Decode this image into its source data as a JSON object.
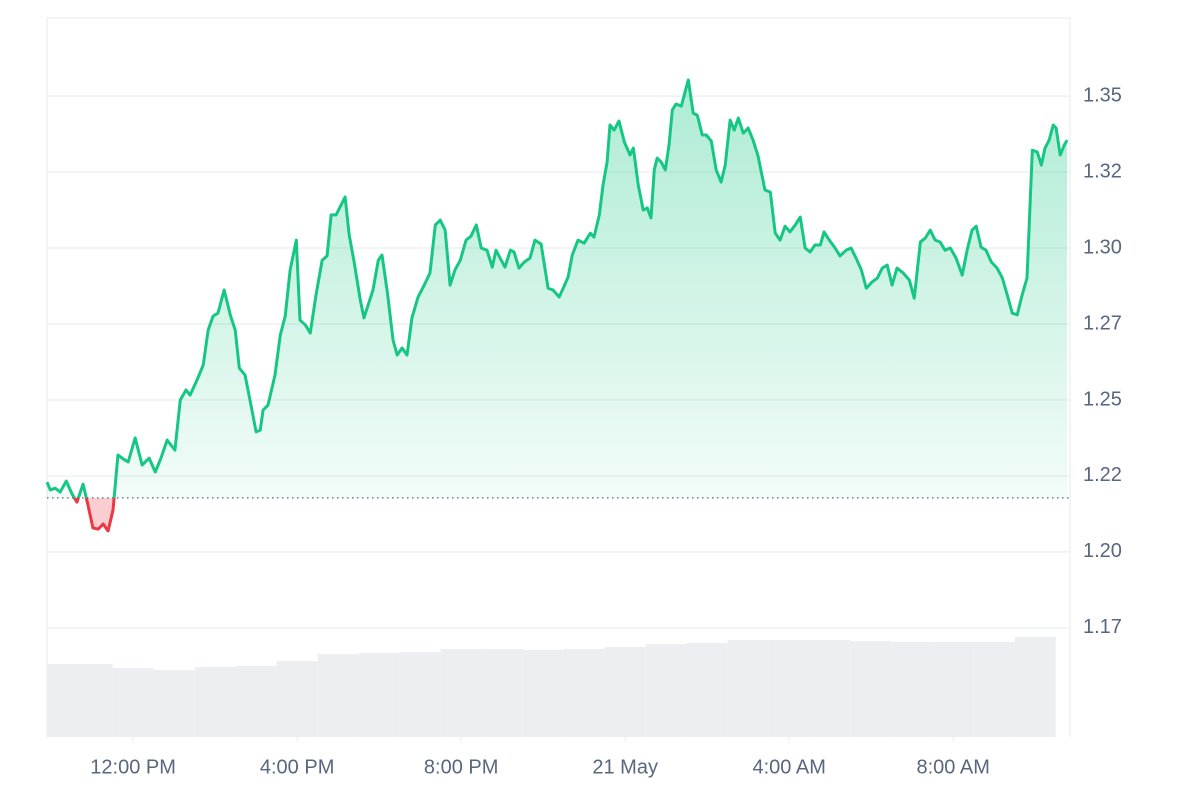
{
  "chart_data": {
    "type": "line",
    "baseline": 1.2178,
    "xlim": [
      9.9,
      34.8
    ],
    "ylim": [
      1.1391,
      1.3757
    ],
    "xticks": [
      {
        "value": 12,
        "label": "12:00 PM"
      },
      {
        "value": 16,
        "label": "4:00 PM"
      },
      {
        "value": 20,
        "label": "8:00 PM"
      },
      {
        "value": 24,
        "label": "21 May"
      },
      {
        "value": 28,
        "label": "4:00 AM"
      },
      {
        "value": 32,
        "label": "8:00 AM"
      }
    ],
    "yticks": [
      {
        "value": 1.175,
        "label": "1.17"
      },
      {
        "value": 1.2,
        "label": "1.20"
      },
      {
        "value": 1.225,
        "label": "1.22"
      },
      {
        "value": 1.25,
        "label": "1.25"
      },
      {
        "value": 1.275,
        "label": "1.27"
      },
      {
        "value": 1.3,
        "label": "1.30"
      },
      {
        "value": 1.325,
        "label": "1.32"
      },
      {
        "value": 1.35,
        "label": "1.35"
      }
    ],
    "grid": true,
    "up_color": "#16c784",
    "down_color": "#ea3943",
    "series": [
      {
        "x": [
          9.9,
          9.98,
          10.1,
          10.22,
          10.37,
          10.51,
          10.63,
          10.78,
          10.9,
          11.02,
          11.15,
          11.27,
          11.39,
          11.51,
          11.63,
          11.76,
          11.88,
          12.05,
          12.22,
          12.39,
          12.54,
          12.68,
          12.83,
          13.02,
          13.15,
          13.29,
          13.39,
          13.56,
          13.71,
          13.83,
          13.95,
          14.07,
          14.22,
          14.37,
          14.49,
          14.59,
          14.73,
          14.85,
          15.0,
          15.1,
          15.17,
          15.29,
          15.46,
          15.59,
          15.71,
          15.83,
          15.98,
          16.07,
          16.2,
          16.32,
          16.46,
          16.61,
          16.73,
          16.83,
          16.95,
          17.07,
          17.17,
          17.27,
          17.39,
          17.54,
          17.63,
          17.73,
          17.85,
          17.98,
          18.07,
          18.2,
          18.34,
          18.44,
          18.56,
          18.68,
          18.8,
          18.95,
          19.1,
          19.24,
          19.37,
          19.49,
          19.61,
          19.73,
          19.85,
          19.98,
          20.12,
          20.24,
          20.37,
          20.49,
          20.63,
          20.76,
          20.85,
          20.95,
          21.07,
          21.2,
          21.29,
          21.41,
          21.54,
          21.68,
          21.8,
          21.95,
          22.12,
          22.24,
          22.39,
          22.49,
          22.61,
          22.71,
          22.85,
          23.0,
          23.15,
          23.24,
          23.37,
          23.46,
          23.56,
          23.63,
          23.73,
          23.85,
          23.98,
          24.12,
          24.2,
          24.32,
          24.44,
          24.54,
          24.63,
          24.71,
          24.78,
          24.88,
          24.98,
          25.07,
          25.15,
          25.24,
          25.37,
          25.44,
          25.54,
          25.66,
          25.76,
          25.88,
          25.98,
          26.1,
          26.22,
          26.34,
          26.44,
          26.56,
          26.66,
          26.76,
          26.88,
          27.0,
          27.12,
          27.24,
          27.41,
          27.54,
          27.66,
          27.78,
          27.9,
          28.02,
          28.15,
          28.27,
          28.39,
          28.51,
          28.63,
          28.76,
          28.85,
          28.98,
          29.12,
          29.24,
          29.39,
          29.51,
          29.63,
          29.76,
          29.88,
          30.02,
          30.15,
          30.27,
          30.39,
          30.51,
          30.63,
          30.78,
          30.93,
          31.05,
          31.2,
          31.32,
          31.44,
          31.56,
          31.68,
          31.8,
          31.93,
          32.07,
          32.22,
          32.34,
          32.46,
          32.56,
          32.68,
          32.8,
          32.93,
          33.07,
          33.2,
          33.32,
          33.44,
          33.56,
          33.68,
          33.8,
          33.93,
          34.05,
          34.15,
          34.24,
          34.34,
          34.44,
          34.51,
          34.61,
          34.71,
          34.78
        ],
        "values": [
          1.223,
          1.2204,
          1.221,
          1.2197,
          1.2233,
          1.2191,
          1.2164,
          1.2223,
          1.2154,
          1.2079,
          1.2075,
          1.2092,
          1.2069,
          1.2138,
          1.2319,
          1.2306,
          1.2296,
          1.2375,
          1.2286,
          1.2309,
          1.2263,
          1.2309,
          1.2368,
          1.2335,
          1.25,
          1.2533,
          1.2516,
          1.2566,
          1.2615,
          1.273,
          1.2776,
          1.2786,
          1.2862,
          1.278,
          1.273,
          1.2605,
          1.2582,
          1.25,
          1.2395,
          1.2401,
          1.2467,
          1.2483,
          1.2582,
          1.2714,
          1.2776,
          1.2928,
          1.3026,
          1.2763,
          1.2747,
          1.272,
          1.2845,
          1.296,
          1.2974,
          1.3109,
          1.3109,
          1.3141,
          1.3168,
          1.3043,
          1.2954,
          1.2829,
          1.277,
          1.2812,
          1.2862,
          1.296,
          1.2977,
          1.2855,
          1.2697,
          1.2648,
          1.2671,
          1.2648,
          1.277,
          1.2839,
          1.2878,
          1.2918,
          1.3076,
          1.3092,
          1.3059,
          1.2878,
          1.2928,
          1.296,
          1.3026,
          1.3039,
          1.3076,
          1.3,
          1.2993,
          1.2937,
          1.2993,
          1.2967,
          1.2937,
          1.2993,
          1.2987,
          1.2934,
          1.2954,
          1.2967,
          1.3026,
          1.3013,
          1.2868,
          1.2862,
          1.2839,
          1.2868,
          1.2905,
          1.2977,
          1.3026,
          1.3016,
          1.3049,
          1.3036,
          1.3109,
          1.3207,
          1.3283,
          1.3405,
          1.3388,
          1.3418,
          1.3349,
          1.3306,
          1.3329,
          1.3207,
          1.3125,
          1.3132,
          1.3099,
          1.3257,
          1.3296,
          1.3283,
          1.3257,
          1.3339,
          1.3454,
          1.3474,
          1.3467,
          1.3503,
          1.3553,
          1.3444,
          1.3437,
          1.3372,
          1.3372,
          1.3352,
          1.3257,
          1.3217,
          1.3273,
          1.3421,
          1.3388,
          1.3428,
          1.3378,
          1.3395,
          1.3355,
          1.3303,
          1.3191,
          1.3184,
          1.3049,
          1.3026,
          1.3072,
          1.3053,
          1.3076,
          1.3102,
          1.3,
          1.2987,
          1.301,
          1.301,
          1.3053,
          1.3026,
          1.3,
          1.2974,
          1.2993,
          1.3,
          1.2967,
          1.2928,
          1.2868,
          1.2888,
          1.2901,
          1.2934,
          1.2944,
          1.2878,
          1.2934,
          1.2918,
          1.2895,
          1.2835,
          1.302,
          1.3033,
          1.3059,
          1.3026,
          1.302,
          1.2993,
          1.3,
          1.2967,
          1.2911,
          1.2993,
          1.3059,
          1.3072,
          1.3003,
          1.2993,
          1.2954,
          1.2934,
          1.2901,
          1.2845,
          1.2786,
          1.278,
          1.2845,
          1.2901,
          1.3322,
          1.3316,
          1.3273,
          1.3329,
          1.3355,
          1.3405,
          1.3395,
          1.3306,
          1.3339,
          1.3355
        ]
      }
    ],
    "volume": {
      "color": "#eceef2",
      "x": [
        10,
        11,
        12,
        13,
        14,
        15,
        16,
        17,
        18,
        19,
        20,
        21,
        22,
        23,
        24,
        25,
        26,
        27,
        28,
        29,
        30,
        31,
        32,
        33,
        34
      ],
      "values": [
        73,
        73,
        69,
        67,
        70,
        71,
        76,
        83,
        84,
        85,
        88,
        88,
        87,
        88,
        90,
        93,
        94,
        97,
        97,
        97,
        96,
        95,
        95,
        95,
        100
      ]
    }
  }
}
